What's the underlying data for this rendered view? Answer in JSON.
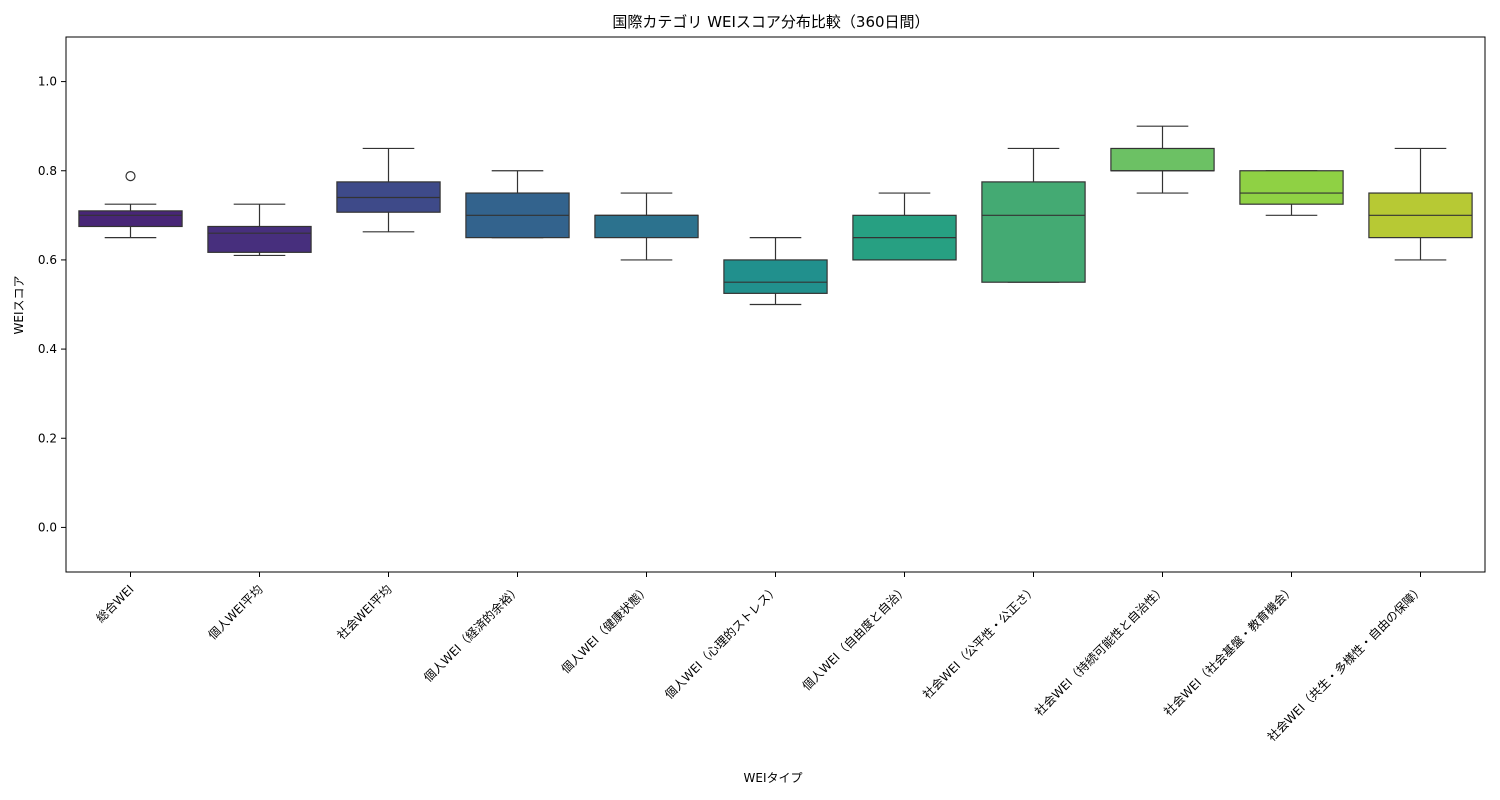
{
  "chart_data": {
    "type": "box",
    "title": "国際カテゴリ WEIスコア分布比較（360日間）",
    "xlabel": "WEIタイプ",
    "ylabel": "WEIスコア",
    "ylim": [
      -0.1,
      1.1
    ],
    "yticks": [
      "0.0",
      "0.2",
      "0.4",
      "0.6",
      "0.8",
      "1.0"
    ],
    "grid": false,
    "legend": "none",
    "categories": [
      "総合WEI",
      "個人WEI平均",
      "社会WEI平均",
      "個人WEI（経済的余裕）",
      "個人WEI（健康状態）",
      "個人WEI（心理的ストレス）",
      "個人WEI（自由度と自治）",
      "社会WEI（公平性・公正さ）",
      "社会WEI（持続可能性と自治性）",
      "社会WEI（社会基盤・教育機会）",
      "社会WEI（共生・多様性・自由の保障）"
    ],
    "boxes": [
      {
        "whisker_low": 0.65,
        "q1": 0.675,
        "median": 0.7,
        "q3": 0.71,
        "whisker_high": 0.725,
        "outliers": [
          0.788
        ],
        "color": "#482677"
      },
      {
        "whisker_low": 0.61,
        "q1": 0.617,
        "median": 0.66,
        "q3": 0.675,
        "whisker_high": 0.725,
        "outliers": [],
        "color": "#472f7d"
      },
      {
        "whisker_low": 0.663,
        "q1": 0.707,
        "median": 0.74,
        "q3": 0.775,
        "whisker_high": 0.85,
        "outliers": [],
        "color": "#3e4a89"
      },
      {
        "whisker_low": 0.65,
        "q1": 0.65,
        "median": 0.7,
        "q3": 0.75,
        "whisker_high": 0.8,
        "outliers": [],
        "color": "#33638d"
      },
      {
        "whisker_low": 0.6,
        "q1": 0.65,
        "median": 0.7,
        "q3": 0.7,
        "whisker_high": 0.75,
        "outliers": [],
        "color": "#2c728e"
      },
      {
        "whisker_low": 0.5,
        "q1": 0.525,
        "median": 0.55,
        "q3": 0.6,
        "whisker_high": 0.65,
        "outliers": [],
        "color": "#21908d"
      },
      {
        "whisker_low": 0.6,
        "q1": 0.6,
        "median": 0.65,
        "q3": 0.7,
        "whisker_high": 0.75,
        "outliers": [],
        "color": "#27a082"
      },
      {
        "whisker_low": 0.55,
        "q1": 0.55,
        "median": 0.7,
        "q3": 0.775,
        "whisker_high": 0.85,
        "outliers": [],
        "color": "#44aa73"
      },
      {
        "whisker_low": 0.75,
        "q1": 0.8,
        "median": 0.8,
        "q3": 0.85,
        "whisker_high": 0.9,
        "outliers": [],
        "color": "#6cc164"
      },
      {
        "whisker_low": 0.7,
        "q1": 0.725,
        "median": 0.75,
        "q3": 0.8,
        "whisker_high": 0.8,
        "outliers": [],
        "color": "#8fd144"
      },
      {
        "whisker_low": 0.6,
        "q1": 0.65,
        "median": 0.7,
        "q3": 0.75,
        "whisker_high": 0.85,
        "outliers": [],
        "color": "#b7c934"
      }
    ]
  }
}
